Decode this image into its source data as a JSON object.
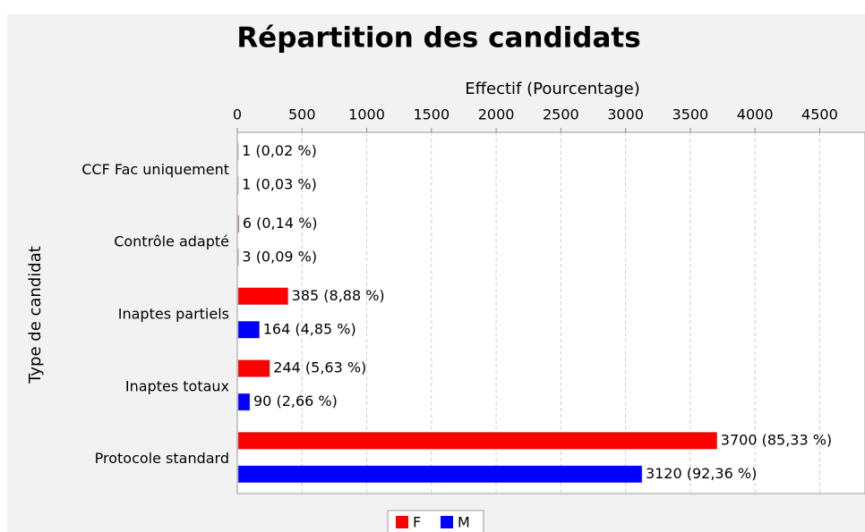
{
  "chart_data": {
    "type": "hbar",
    "title": "Répartition des candidats",
    "x_label": "Effectif (Pourcentage)",
    "y_label": "Type de candidat",
    "categories": [
      "CCF Fac uniquement",
      "Contrôle adapté",
      "Inaptes partiels",
      "Inaptes totaux",
      "Protocole standard"
    ],
    "series": [
      {
        "name": "F",
        "color": "#ff0000",
        "values": [
          1,
          6,
          385,
          244,
          3700
        ],
        "value_labels": [
          "1 (0,02 %)",
          "6 (0,14 %)",
          "385 (8,88 %)",
          "244 (5,63 %)",
          "3700 (85,33 %)"
        ]
      },
      {
        "name": "M",
        "color": "#0000ff",
        "values": [
          1,
          3,
          164,
          90,
          3120
        ],
        "value_labels": [
          "1 (0,03 %)",
          "3 (0,09 %)",
          "164 (4,85 %)",
          "90 (2,66 %)",
          "3120 (92,36 %)"
        ]
      }
    ],
    "xlim": [
      0,
      4850
    ],
    "xticks": [
      0,
      500,
      1000,
      1500,
      2000,
      2500,
      3000,
      3500,
      4000,
      4500
    ],
    "grid": true,
    "legend": "bottom"
  }
}
